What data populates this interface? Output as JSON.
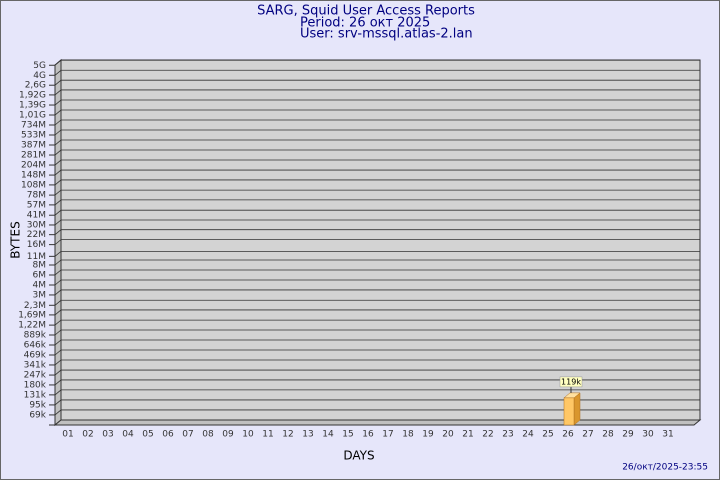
{
  "chart_data": {
    "type": "bar",
    "title": "SARG, Squid User Access Reports",
    "subtitle": [
      "Period: 26 окт 2025",
      "User: srv-mssql.atlas-2.lan"
    ],
    "footer": "26/окт/2025-23:55",
    "ylabel": "BYTES",
    "xlabel": "DAYS",
    "log_scale": true,
    "grid": true,
    "color": "#ffc766",
    "categories": [
      "01",
      "02",
      "03",
      "04",
      "05",
      "06",
      "07",
      "08",
      "09",
      "10",
      "11",
      "12",
      "13",
      "14",
      "15",
      "16",
      "17",
      "18",
      "19",
      "20",
      "21",
      "22",
      "23",
      "24",
      "25",
      "26",
      "27",
      "28",
      "29",
      "30",
      "31"
    ],
    "values": [
      null,
      null,
      null,
      null,
      null,
      null,
      null,
      null,
      null,
      null,
      null,
      null,
      null,
      null,
      null,
      null,
      null,
      null,
      null,
      null,
      null,
      null,
      null,
      null,
      null,
      119000,
      null,
      null,
      null,
      null,
      null
    ],
    "value_labels": [
      null,
      null,
      null,
      null,
      null,
      null,
      null,
      null,
      null,
      null,
      null,
      null,
      null,
      null,
      null,
      null,
      null,
      null,
      null,
      null,
      null,
      null,
      null,
      null,
      null,
      "119k",
      null,
      null,
      null,
      null,
      null
    ],
    "ylim": [
      50000,
      5000000000
    ],
    "yticks": [
      {
        "value": 69000,
        "label": "69k"
      },
      {
        "value": 95000,
        "label": "95k"
      },
      {
        "value": 131000,
        "label": "131k"
      },
      {
        "value": 180000,
        "label": "180k"
      },
      {
        "value": 247000,
        "label": "247k"
      },
      {
        "value": 341000,
        "label": "341k"
      },
      {
        "value": 469000,
        "label": "469k"
      },
      {
        "value": 646000,
        "label": "646k"
      },
      {
        "value": 889000,
        "label": "889k"
      },
      {
        "value": 1220000,
        "label": "1,22M"
      },
      {
        "value": 1690000,
        "label": "1,69M"
      },
      {
        "value": 2300000,
        "label": "2,3M"
      },
      {
        "value": 3200000,
        "label": "3M"
      },
      {
        "value": 4400000,
        "label": "4M"
      },
      {
        "value": 6060000,
        "label": "6M"
      },
      {
        "value": 8340000,
        "label": "8M"
      },
      {
        "value": 11000000,
        "label": "11M"
      },
      {
        "value": 16000000,
        "label": "16M"
      },
      {
        "value": 22000000,
        "label": "22M"
      },
      {
        "value": 30000000,
        "label": "30M"
      },
      {
        "value": 41000000,
        "label": "41M"
      },
      {
        "value": 57000000,
        "label": "57M"
      },
      {
        "value": 78000000,
        "label": "78M"
      },
      {
        "value": 108000000,
        "label": "108M"
      },
      {
        "value": 148000000,
        "label": "148M"
      },
      {
        "value": 204000000,
        "label": "204M"
      },
      {
        "value": 281000000,
        "label": "281M"
      },
      {
        "value": 387000000,
        "label": "387M"
      },
      {
        "value": 533000000,
        "label": "533M"
      },
      {
        "value": 734000000,
        "label": "734M"
      },
      {
        "value": 1010000000,
        "label": "1,01G"
      },
      {
        "value": 1390000000,
        "label": "1,39G"
      },
      {
        "value": 1920000000,
        "label": "1,92G"
      },
      {
        "value": 2620000000,
        "label": "2,6G"
      },
      {
        "value": 3600000000,
        "label": "4G"
      },
      {
        "value": 4960000000,
        "label": "5G"
      }
    ]
  }
}
